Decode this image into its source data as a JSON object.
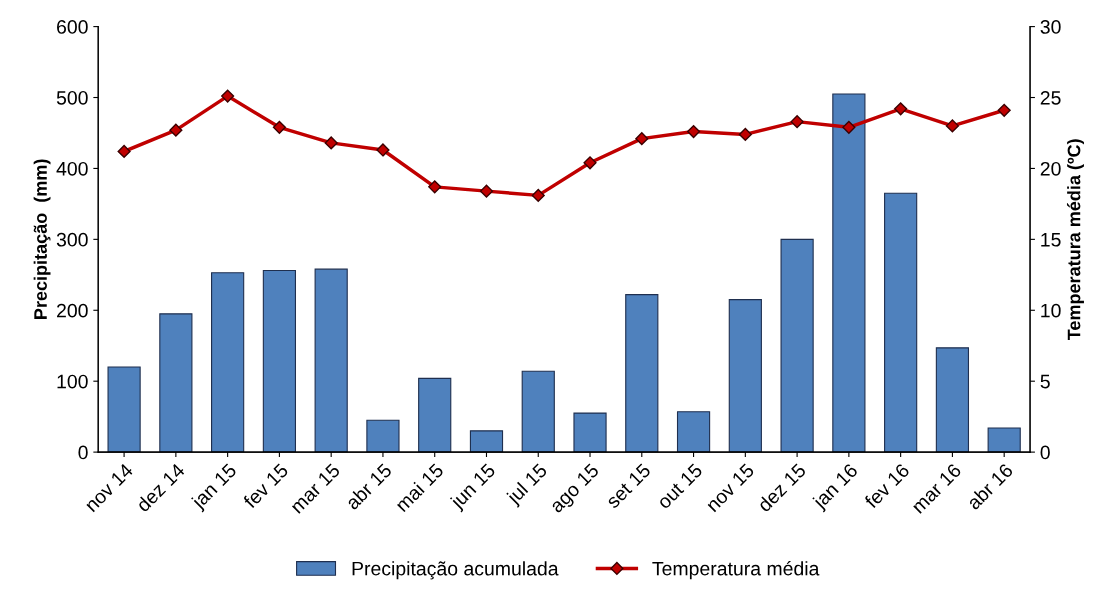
{
  "chart_data": {
    "type": "bar",
    "ylabel": "Precipitação  (mm)",
    "y2label": "Temperatura média (ºC)",
    "categories": [
      "nov 14",
      "dez 14",
      "jan 15",
      "fev 15",
      "mar 15",
      "abr 15",
      "mai 15",
      "jun 15",
      "jul 15",
      "ago 15",
      "set 15",
      "out 15",
      "nov 15",
      "dez 15",
      "jan 16",
      "fev 16",
      "mar 16",
      "abr 16"
    ],
    "series": [
      {
        "name": "Precipitação acumulada",
        "color": "#4f81bd",
        "values": [
          120,
          195,
          253,
          256,
          258,
          45,
          104,
          30,
          114,
          55,
          222,
          57,
          215,
          300,
          505,
          365,
          147,
          34
        ]
      },
      {
        "name": "Temperatura média",
        "type": "line",
        "axis": "y2",
        "color": "#c00000",
        "marker": "diamond",
        "values": [
          21.2,
          22.7,
          25.1,
          22.9,
          21.8,
          21.3,
          18.7,
          18.4,
          18.1,
          20.4,
          22.1,
          22.6,
          22.4,
          23.3,
          22.9,
          24.2,
          23.0,
          24.1
        ]
      }
    ],
    "ylim": [
      0,
      600
    ],
    "yticks": [
      0,
      100,
      200,
      300,
      400,
      500,
      600
    ],
    "y2lim": [
      0,
      30
    ],
    "y2ticks": [
      0,
      5,
      10,
      15,
      20,
      25,
      30
    ],
    "legend": "bottom",
    "grid": false
  }
}
